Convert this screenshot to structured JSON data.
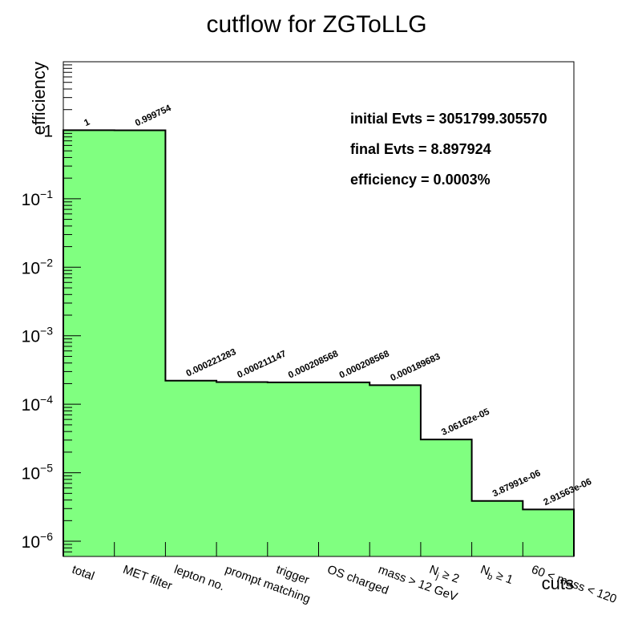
{
  "chart_data": {
    "type": "bar",
    "title": "cutflow for ZGToLLG",
    "xlabel": "cuts",
    "ylabel": "efficiency",
    "yscale": "log",
    "ylim": [
      6e-07,
      10
    ],
    "grid": false,
    "fill_color": "#80ff80",
    "line_color": "#000000",
    "categories": [
      "total",
      "MET filter",
      "lepton no.",
      "prompt matching",
      "trigger",
      "OS charged",
      "mass > 12 GeV",
      "N_j ≥ 2",
      "N_b ≥ 1",
      "60 < mass < 120"
    ],
    "values": [
      1,
      0.999754,
      0.000221283,
      0.000211147,
      0.000208568,
      0.000208568,
      0.000189683,
      3.06162e-05,
      3.87991e-06,
      2.91563e-06
    ],
    "value_labels": [
      "1",
      "0.999754",
      "0.000221283",
      "0.000211147",
      "0.000208568",
      "0.000208568",
      "0.000189683",
      "3.06162e-05",
      "3.87991e-06",
      "2.91563e-06"
    ],
    "ytick_labels": [
      {
        "value": 1,
        "base": "1",
        "exp": ""
      },
      {
        "value": 0.1,
        "base": "10",
        "exp": "−1"
      },
      {
        "value": 0.01,
        "base": "10",
        "exp": "−2"
      },
      {
        "value": 0.001,
        "base": "10",
        "exp": "−3"
      },
      {
        "value": 0.0001,
        "base": "10",
        "exp": "−4"
      },
      {
        "value": 1e-05,
        "base": "10",
        "exp": "−5"
      },
      {
        "value": 1e-06,
        "base": "10",
        "exp": "−6"
      }
    ],
    "annotations": [
      "initial Evts = 3051799.305570",
      "final Evts = 8.897924",
      "efficiency = 0.0003%"
    ]
  }
}
